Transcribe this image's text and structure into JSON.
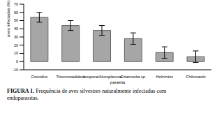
{
  "chart_data": {
    "type": "bar",
    "title": "FIGURA 1. Frequência de aves silvestres naturalmente infectadas com endoparasitas.",
    "x_label": "parasita",
    "y_label": "aves infectadas (%)",
    "categories": [
      "Coccidios",
      "Tricomonadideos",
      "Isospora/Atoxoplasma",
      "Entamoeba sp.",
      "Helmintos",
      "Chilomastix"
    ],
    "values": [
      54,
      44,
      38,
      28,
      11,
      6
    ],
    "error": [
      6,
      6,
      6,
      7,
      7,
      7
    ],
    "color": "#a6a6a6",
    "ylim": [
      -10,
      70
    ],
    "yticks": [
      -10,
      0,
      10,
      20,
      30,
      40,
      50,
      60,
      70
    ],
    "grid": false
  }
}
